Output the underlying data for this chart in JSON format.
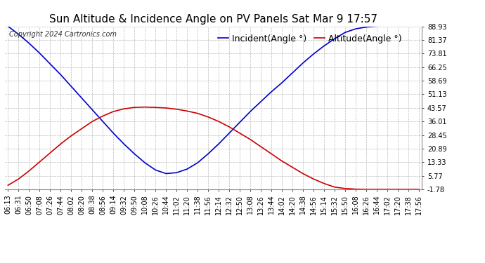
{
  "title": "Sun Altitude & Incidence Angle on PV Panels Sat Mar 9 17:57",
  "copyright": "Copyright 2024 Cartronics.com",
  "legend_incident": "Incident(Angle °)",
  "legend_altitude": "Altitude(Angle °)",
  "incident_color": "#0000cc",
  "altitude_color": "#cc0000",
  "background_color": "#ffffff",
  "grid_color": "#bbbbbb",
  "yticks": [
    -1.78,
    5.77,
    13.33,
    20.89,
    28.45,
    36.01,
    43.57,
    51.13,
    58.69,
    66.25,
    73.81,
    81.37,
    88.93
  ],
  "ylim": [
    -1.78,
    88.93
  ],
  "time_labels": [
    "06:13",
    "06:31",
    "06:50",
    "07:08",
    "07:26",
    "07:44",
    "08:02",
    "08:20",
    "08:38",
    "08:56",
    "09:14",
    "09:32",
    "09:50",
    "10:08",
    "10:26",
    "10:44",
    "11:02",
    "11:20",
    "11:38",
    "11:56",
    "12:14",
    "12:32",
    "12:50",
    "13:08",
    "13:26",
    "13:44",
    "14:02",
    "14:20",
    "14:38",
    "14:56",
    "15:14",
    "15:32",
    "15:50",
    "16:08",
    "16:26",
    "16:44",
    "17:02",
    "17:20",
    "17:38",
    "17:56"
  ],
  "incident_values": [
    88.93,
    84.5,
    79.5,
    74.0,
    68.0,
    62.0,
    55.5,
    49.0,
    42.5,
    36.0,
    29.5,
    23.5,
    18.0,
    13.0,
    9.0,
    7.0,
    7.5,
    9.5,
    13.0,
    18.0,
    23.5,
    29.5,
    35.5,
    41.5,
    47.0,
    52.5,
    57.5,
    63.0,
    68.5,
    73.5,
    78.0,
    82.0,
    85.5,
    87.5,
    88.5,
    89.0,
    89.2,
    89.3,
    89.4,
    89.5
  ],
  "altitude_values": [
    0.5,
    4.0,
    8.5,
    13.5,
    18.5,
    23.5,
    28.0,
    32.0,
    36.0,
    39.0,
    41.5,
    43.0,
    43.8,
    44.0,
    43.8,
    43.5,
    42.8,
    41.8,
    40.5,
    38.5,
    36.0,
    33.0,
    29.5,
    26.0,
    22.0,
    18.0,
    14.0,
    10.5,
    7.0,
    4.0,
    1.5,
    -0.5,
    -1.3,
    -1.65,
    -1.78,
    -1.78,
    -1.78,
    -1.78,
    -1.78,
    -1.78
  ],
  "title_fontsize": 11,
  "tick_fontsize": 7,
  "legend_fontsize": 9,
  "copyright_fontsize": 7
}
